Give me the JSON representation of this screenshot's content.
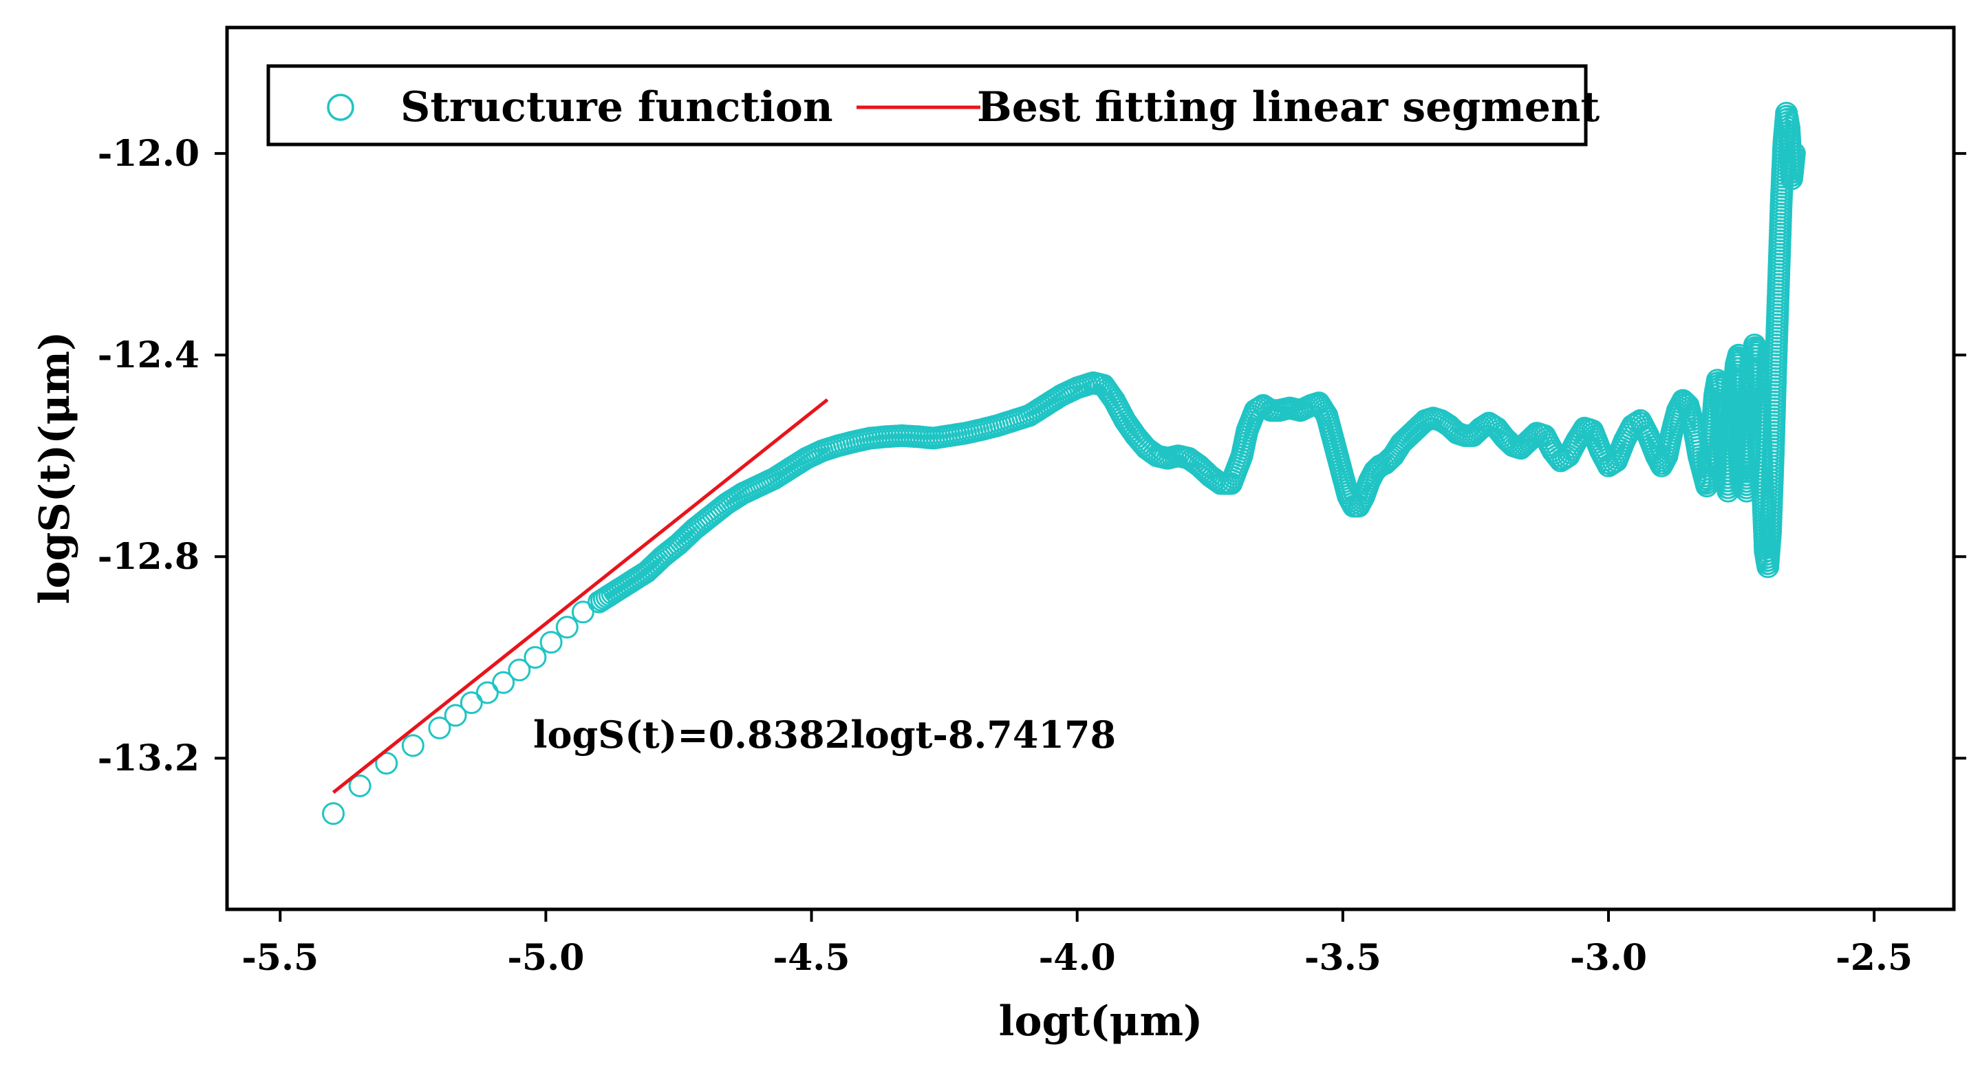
{
  "chart_data": {
    "type": "scatter",
    "title": "",
    "xlabel": "logt(μm)",
    "ylabel": "logS(t)(μm)",
    "xlim": [
      -5.6,
      -2.35
    ],
    "ylim": [
      -13.5,
      -11.75
    ],
    "xticks": [
      -5.5,
      -5.0,
      -4.5,
      -4.0,
      -3.5,
      -3.0,
      -2.5
    ],
    "yticks": [
      -13.2,
      -12.8,
      -12.4,
      -12.0
    ],
    "xtick_labels": [
      "-5.5",
      "-5.0",
      "-4.5",
      "-4.0",
      "-3.5",
      "-3.0",
      "-2.5"
    ],
    "ytick_labels": [
      "-13.2",
      "-12.8",
      "-12.4",
      "-12.0"
    ],
    "grid": false,
    "legend_position": "top-left",
    "colors": {
      "structure": "#20c4c4",
      "fit": "#e8141c",
      "axes": "#000000"
    },
    "series": [
      {
        "name": "Structure function",
        "kind": "scatter",
        "marker": "open-circle",
        "points": [
          [
            -5.4,
            -13.31
          ],
          [
            -5.35,
            -13.255
          ],
          [
            -5.3,
            -13.21
          ],
          [
            -5.25,
            -13.175
          ],
          [
            -5.2,
            -13.14
          ],
          [
            -5.17,
            -13.115
          ],
          [
            -5.14,
            -13.09
          ],
          [
            -5.11,
            -13.07
          ],
          [
            -5.08,
            -13.05
          ],
          [
            -5.05,
            -13.025
          ],
          [
            -5.02,
            -13.0
          ],
          [
            -4.99,
            -12.97
          ],
          [
            -4.96,
            -12.94
          ],
          [
            -4.93,
            -12.91
          ],
          [
            -4.9,
            -12.89
          ],
          [
            -4.87,
            -12.87
          ],
          [
            -4.84,
            -12.85
          ],
          [
            -4.81,
            -12.83
          ],
          [
            -4.78,
            -12.8
          ],
          [
            -4.75,
            -12.775
          ],
          [
            -4.72,
            -12.745
          ],
          [
            -4.69,
            -12.72
          ],
          [
            -4.66,
            -12.695
          ],
          [
            -4.63,
            -12.675
          ],
          [
            -4.6,
            -12.66
          ],
          [
            -4.57,
            -12.645
          ],
          [
            -4.54,
            -12.625
          ],
          [
            -4.51,
            -12.605
          ],
          [
            -4.48,
            -12.59
          ],
          [
            -4.45,
            -12.58
          ],
          [
            -4.42,
            -12.572
          ],
          [
            -4.39,
            -12.565
          ],
          [
            -4.36,
            -12.562
          ],
          [
            -4.33,
            -12.56
          ],
          [
            -4.3,
            -12.562
          ],
          [
            -4.27,
            -12.565
          ],
          [
            -4.24,
            -12.56
          ],
          [
            -4.21,
            -12.555
          ],
          [
            -4.18,
            -12.548
          ],
          [
            -4.15,
            -12.54
          ],
          [
            -4.12,
            -12.53
          ],
          [
            -4.09,
            -12.52
          ],
          [
            -4.06,
            -12.5
          ],
          [
            -4.03,
            -12.48
          ],
          [
            -4.0,
            -12.465
          ],
          [
            -3.97,
            -12.455
          ],
          [
            -3.95,
            -12.46
          ],
          [
            -3.93,
            -12.49
          ],
          [
            -3.91,
            -12.53
          ],
          [
            -3.89,
            -12.56
          ],
          [
            -3.87,
            -12.585
          ],
          [
            -3.85,
            -12.6
          ],
          [
            -3.83,
            -12.605
          ],
          [
            -3.81,
            -12.6
          ],
          [
            -3.79,
            -12.605
          ],
          [
            -3.77,
            -12.62
          ],
          [
            -3.75,
            -12.64
          ],
          [
            -3.73,
            -12.655
          ],
          [
            -3.71,
            -12.655
          ],
          [
            -3.69,
            -12.6
          ],
          [
            -3.68,
            -12.55
          ],
          [
            -3.665,
            -12.51
          ],
          [
            -3.65,
            -12.5
          ],
          [
            -3.635,
            -12.51
          ],
          [
            -3.62,
            -12.51
          ],
          [
            -3.6,
            -12.505
          ],
          [
            -3.58,
            -12.51
          ],
          [
            -3.56,
            -12.5
          ],
          [
            -3.545,
            -12.495
          ],
          [
            -3.53,
            -12.52
          ],
          [
            -3.515,
            -12.58
          ],
          [
            -3.5,
            -12.64
          ],
          [
            -3.49,
            -12.68
          ],
          [
            -3.48,
            -12.7
          ],
          [
            -3.47,
            -12.7
          ],
          [
            -3.46,
            -12.68
          ],
          [
            -3.45,
            -12.65
          ],
          [
            -3.44,
            -12.63
          ],
          [
            -3.43,
            -12.62
          ],
          [
            -3.42,
            -12.615
          ],
          [
            -3.405,
            -12.6
          ],
          [
            -3.39,
            -12.575
          ],
          [
            -3.375,
            -12.56
          ],
          [
            -3.36,
            -12.545
          ],
          [
            -3.345,
            -12.53
          ],
          [
            -3.33,
            -12.525
          ],
          [
            -3.315,
            -12.53
          ],
          [
            -3.3,
            -12.54
          ],
          [
            -3.285,
            -12.555
          ],
          [
            -3.27,
            -12.56
          ],
          [
            -3.255,
            -12.56
          ],
          [
            -3.24,
            -12.545
          ],
          [
            -3.225,
            -12.535
          ],
          [
            -3.21,
            -12.545
          ],
          [
            -3.195,
            -12.565
          ],
          [
            -3.18,
            -12.58
          ],
          [
            -3.165,
            -12.585
          ],
          [
            -3.15,
            -12.57
          ],
          [
            -3.135,
            -12.555
          ],
          [
            -3.12,
            -12.56
          ],
          [
            -3.105,
            -12.59
          ],
          [
            -3.09,
            -12.61
          ],
          [
            -3.075,
            -12.6
          ],
          [
            -3.06,
            -12.57
          ],
          [
            -3.045,
            -12.545
          ],
          [
            -3.03,
            -12.55
          ],
          [
            -3.015,
            -12.59
          ],
          [
            -3.0,
            -12.62
          ],
          [
            -2.985,
            -12.61
          ],
          [
            -2.97,
            -12.57
          ],
          [
            -2.955,
            -12.54
          ],
          [
            -2.94,
            -12.53
          ],
          [
            -2.925,
            -12.56
          ],
          [
            -2.91,
            -12.6
          ],
          [
            -2.9,
            -12.62
          ],
          [
            -2.89,
            -12.6
          ],
          [
            -2.88,
            -12.55
          ],
          [
            -2.87,
            -12.51
          ],
          [
            -2.86,
            -12.49
          ],
          [
            -2.85,
            -12.5
          ],
          [
            -2.84,
            -12.54
          ],
          [
            -2.83,
            -12.6
          ],
          [
            -2.82,
            -12.64
          ],
          [
            -2.815,
            -12.66
          ],
          [
            -2.81,
            -12.62
          ],
          [
            -2.805,
            -12.55
          ],
          [
            -2.8,
            -12.48
          ],
          [
            -2.795,
            -12.45
          ],
          [
            -2.79,
            -12.47
          ],
          [
            -2.785,
            -12.55
          ],
          [
            -2.78,
            -12.63
          ],
          [
            -2.775,
            -12.67
          ],
          [
            -2.77,
            -12.61
          ],
          [
            -2.765,
            -12.5
          ],
          [
            -2.76,
            -12.42
          ],
          [
            -2.755,
            -12.4
          ],
          [
            -2.75,
            -12.48
          ],
          [
            -2.745,
            -12.6
          ],
          [
            -2.74,
            -12.67
          ],
          [
            -2.735,
            -12.6
          ],
          [
            -2.73,
            -12.46
          ],
          [
            -2.725,
            -12.38
          ],
          [
            -2.72,
            -12.4
          ],
          [
            -2.715,
            -12.52
          ],
          [
            -2.71,
            -12.66
          ],
          [
            -2.705,
            -12.79
          ],
          [
            -2.7,
            -12.82
          ],
          [
            -2.695,
            -12.75
          ],
          [
            -2.69,
            -12.6
          ],
          [
            -2.685,
            -12.42
          ],
          [
            -2.68,
            -12.26
          ],
          [
            -2.675,
            -12.1
          ],
          [
            -2.67,
            -11.98
          ],
          [
            -2.665,
            -11.92
          ],
          [
            -2.66,
            -11.95
          ],
          [
            -2.655,
            -12.05
          ],
          [
            -2.65,
            -12.0
          ]
        ]
      },
      {
        "name": "Best fitting linear segment",
        "kind": "line",
        "slope": 0.8382,
        "intercept": -8.74178,
        "x_range": [
          -5.4,
          -4.47
        ]
      }
    ],
    "legend": [
      {
        "label": "Structure function",
        "marker": "open-circle"
      },
      {
        "label": "Best fitting linear segment",
        "marker": "line"
      }
    ],
    "annotations": [
      {
        "text": "logS(t)=0.8382logt-8.74178"
      }
    ]
  }
}
